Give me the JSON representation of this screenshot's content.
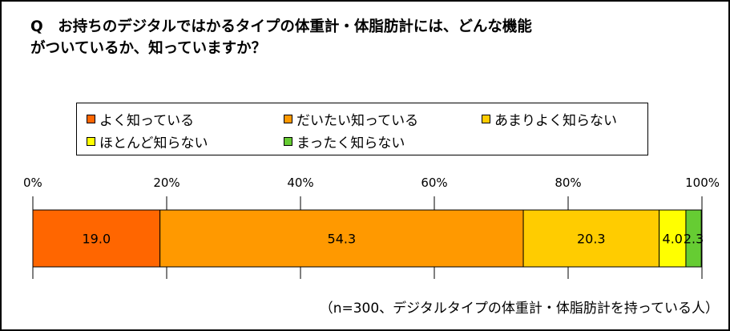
{
  "title_line1": "Q　お持ちのデジタルではかるタイプの体重計・体脂肪計には、どんな機能",
  "title_line2": "がついているか、知っていますか？",
  "note": "（n=300、デジタルタイプの体重計・体脂肪計を持っている人）",
  "chart_data": {
    "type": "bar",
    "orientation": "horizontal",
    "stacked": true,
    "xlim": [
      0,
      100
    ],
    "x_tick_labels": [
      "0%",
      "20%",
      "40%",
      "60%",
      "80%",
      "100%"
    ],
    "x_ticks": [
      0,
      20,
      40,
      60,
      80,
      100
    ],
    "grid": true,
    "legend_position": "top",
    "series": [
      {
        "name": "よく知っている",
        "values": [
          19.0
        ],
        "label": "19.0",
        "color": "#FF6600"
      },
      {
        "name": "だいたい知っている",
        "values": [
          54.3
        ],
        "label": "54.3",
        "color": "#FF9900"
      },
      {
        "name": "あまりよく知らない",
        "values": [
          20.3
        ],
        "label": "20.3",
        "color": "#FFCC00"
      },
      {
        "name": "ほとんど知らない",
        "values": [
          4.0
        ],
        "label": "4.0",
        "color": "#FFFF00"
      },
      {
        "name": "まったく知らない",
        "values": [
          2.3
        ],
        "label": "2.3",
        "color": "#66CC33"
      }
    ]
  }
}
